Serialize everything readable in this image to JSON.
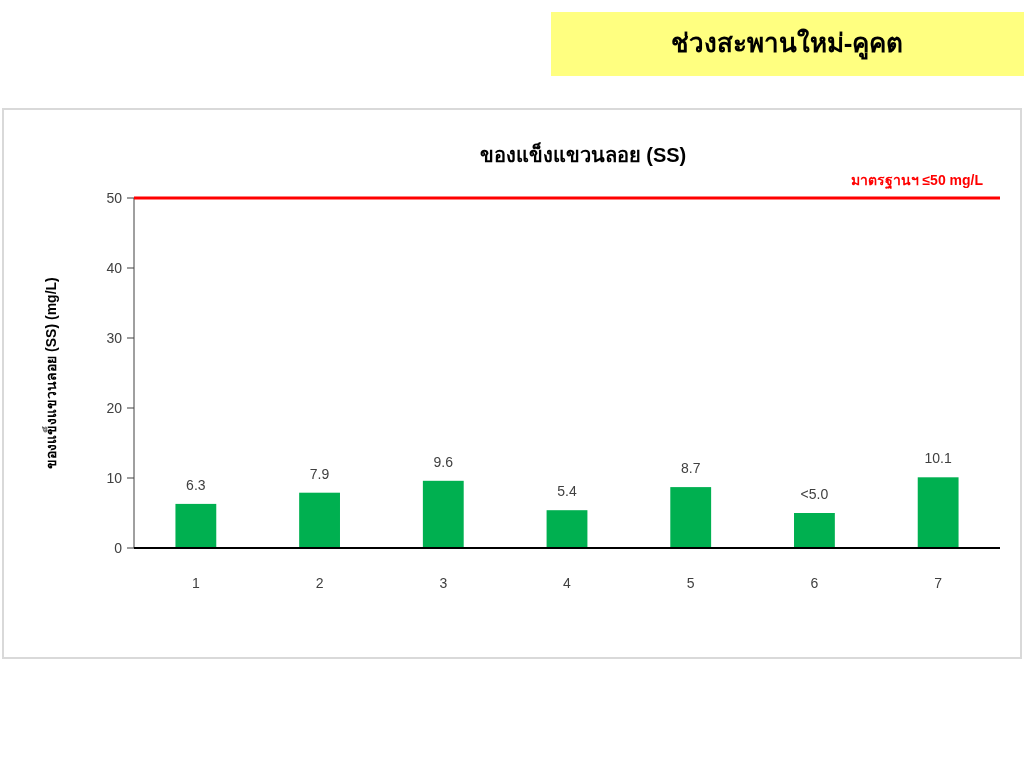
{
  "chart_data": {
    "type": "bar",
    "title": "ของแข็งแขวนลอย (SS)",
    "annotations": [
      "ช่วงสะพานใหม่-คูคต"
    ],
    "ylabel": "ของแข็งแขวนลอย (SS) (mg/L)",
    "categories": [
      "1",
      "2",
      "3",
      "4",
      "5",
      "6",
      "7"
    ],
    "values": [
      6.3,
      7.9,
      9.6,
      5.4,
      8.7,
      5.0,
      10.1
    ],
    "value_labels": [
      "6.3",
      "7.9",
      "9.6",
      "5.4",
      "8.7",
      "<5.0",
      "10.1"
    ],
    "color": "#00b050",
    "ylim": [
      0,
      50
    ],
    "yticks": [
      0,
      10,
      20,
      30,
      40,
      50
    ],
    "ref_lines": [
      {
        "axis": "y",
        "value": 50,
        "label": "มาตรฐานฯ ≤50 mg/L",
        "color": "#ff0000"
      }
    ],
    "grid": false
  }
}
